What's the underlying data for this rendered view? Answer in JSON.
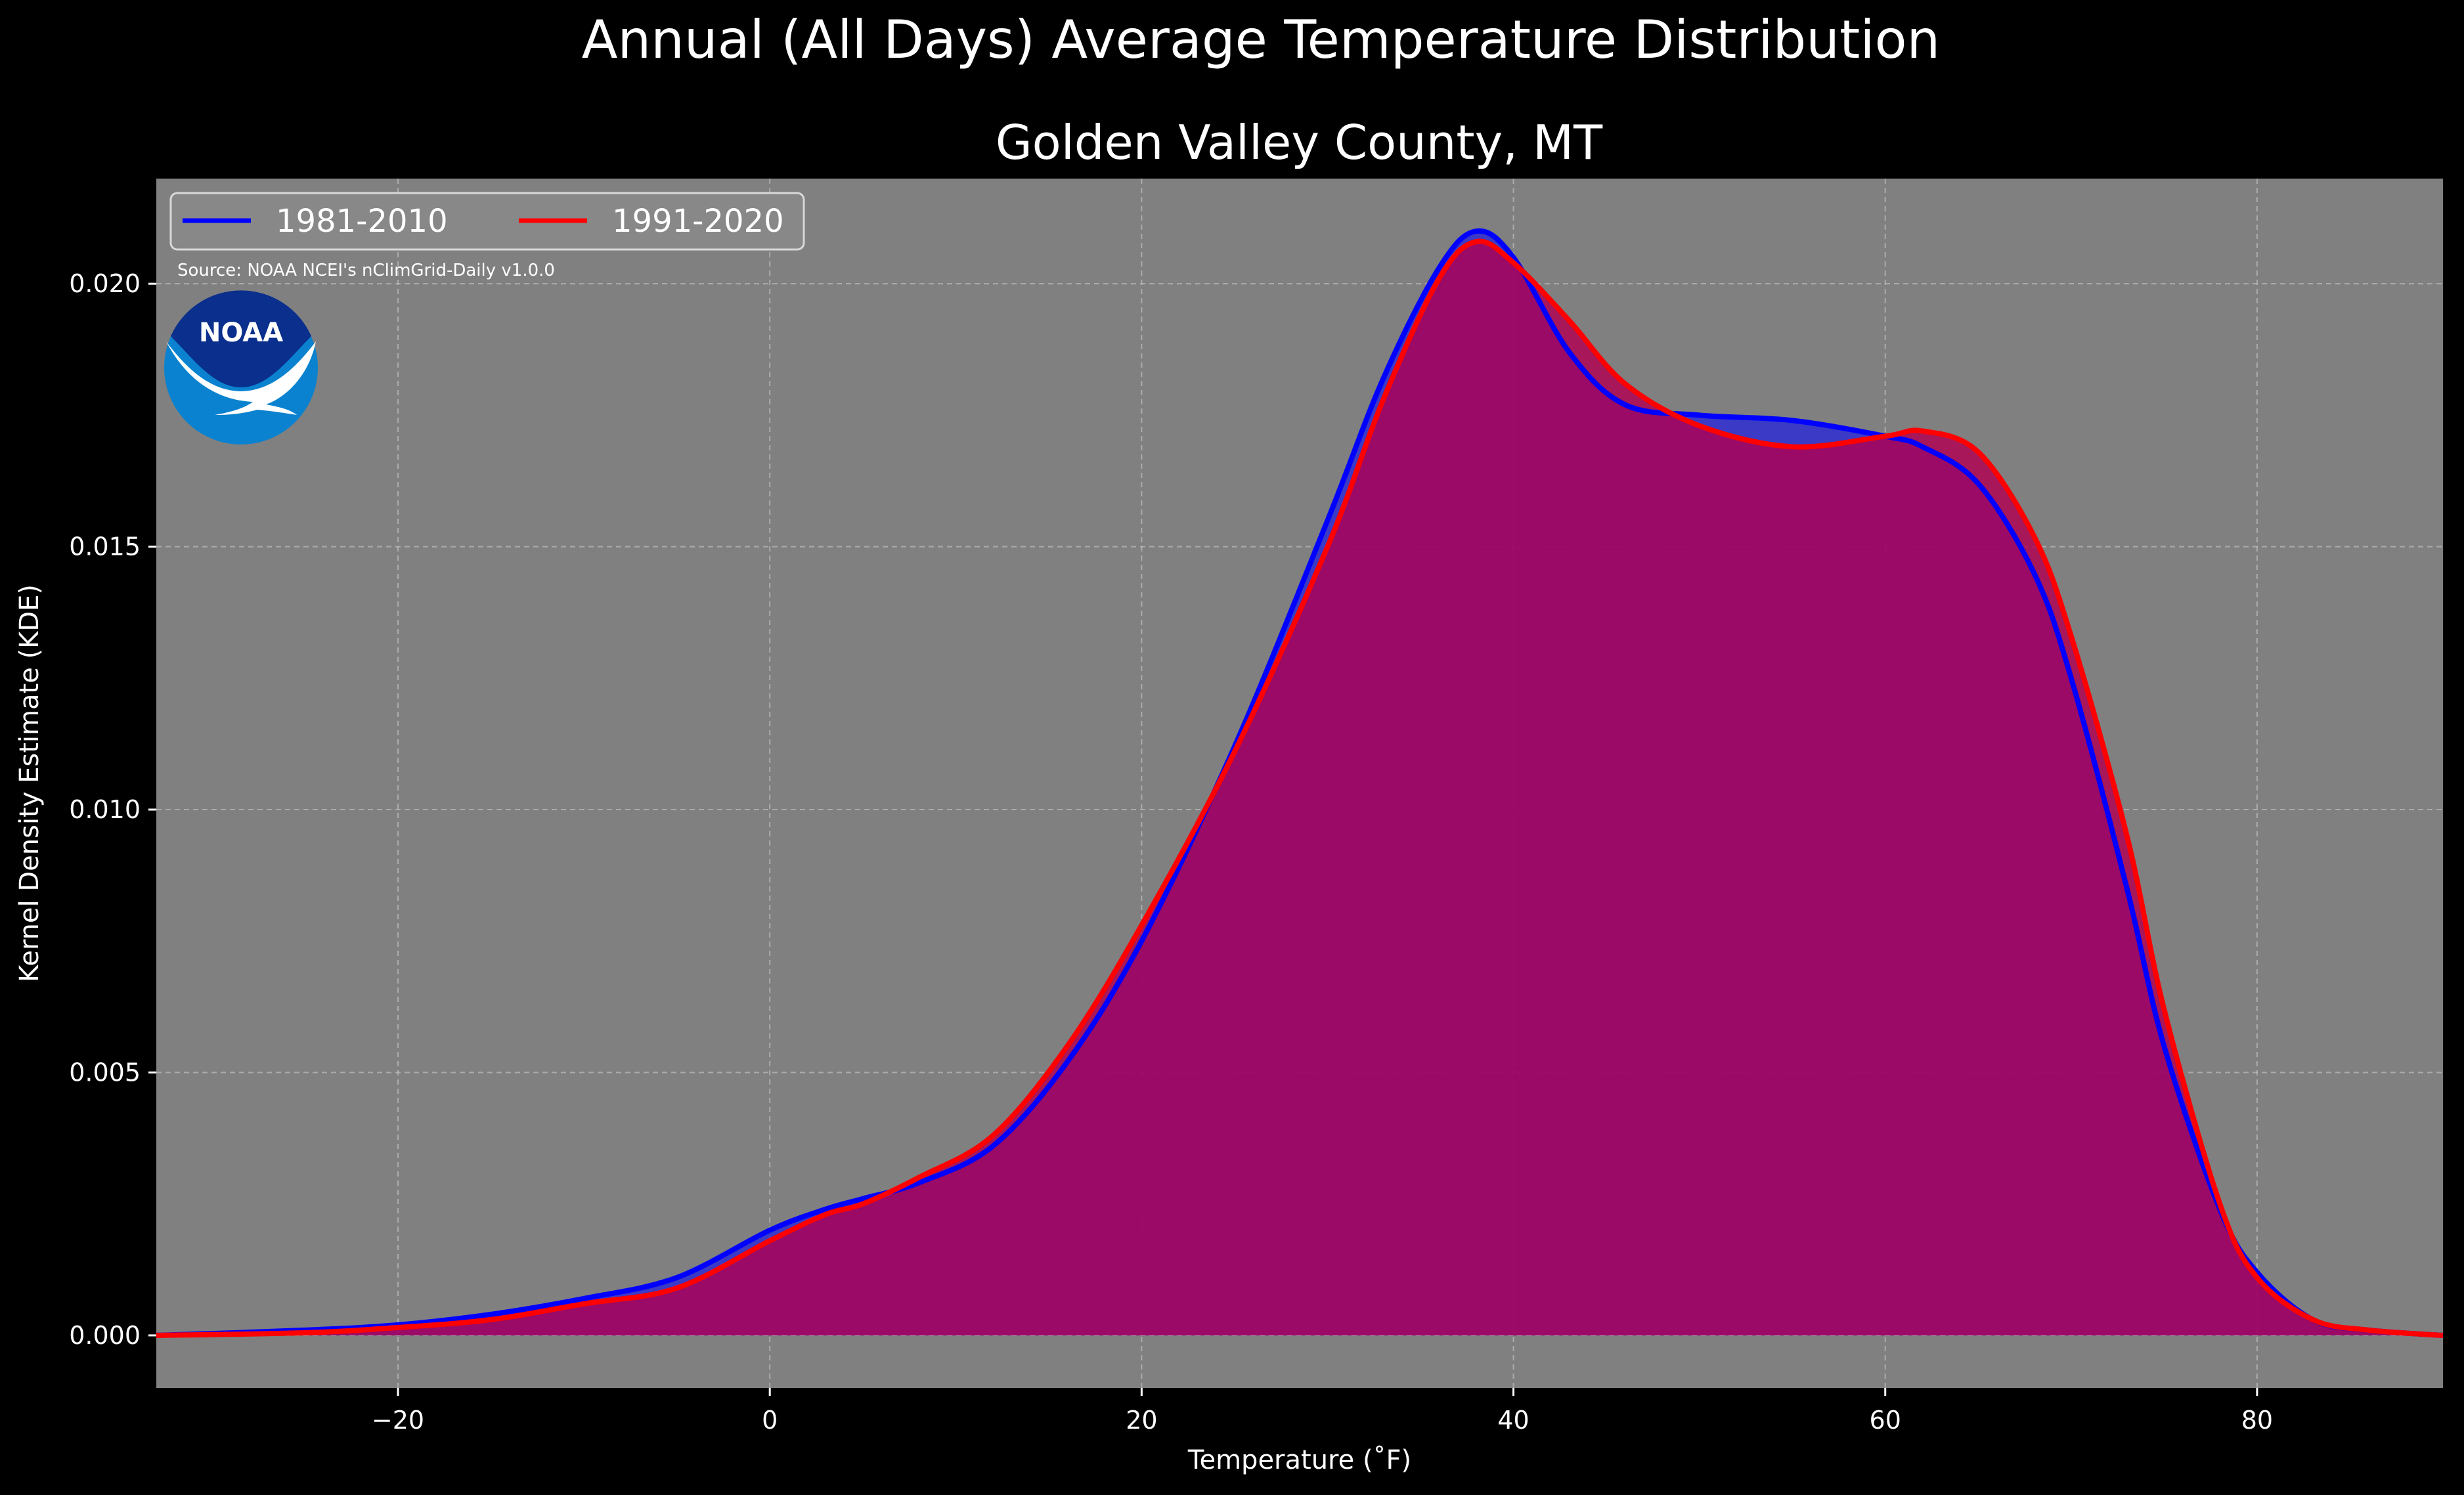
{
  "colors": {
    "figure_background": "#000000",
    "plot_background": "#808080",
    "series_1981": "#0000ff",
    "series_1991": "#ff0000",
    "fill_1981": "#0000ff",
    "fill_1991": "#b00050",
    "text": "#ffffff",
    "logo_dark": "#0a2f8c",
    "logo_light": "#0a82cf"
  },
  "logo": {
    "text": "NOAA",
    "icon": "noaa-logo-icon"
  },
  "source": "Source: NOAA NCEI's nClimGrid-Daily v1.0.0",
  "chart_data": {
    "type": "area",
    "title": "Golden Valley County, MT",
    "suptitle": "Annual (All Days) Average Temperature Distribution",
    "xlabel": "Temperature ($^\\circ$F)",
    "xlabel_display": "Temperature (˚F)",
    "ylabel": "Kernel Density Estimate (KDE)",
    "xlim": [
      -33,
      90
    ],
    "ylim": [
      -0.001,
      0.022
    ],
    "xticks": [
      -20,
      0,
      20,
      40,
      60,
      80
    ],
    "xtick_labels": [
      "−20",
      "0",
      "20",
      "40",
      "60",
      "80"
    ],
    "yticks": [
      0.0,
      0.005,
      0.01,
      0.015,
      0.02
    ],
    "ytick_labels": [
      "0.000",
      "0.005",
      "0.010",
      "0.015",
      "0.020"
    ],
    "grid": true,
    "legend_placement": "top-left",
    "series": [
      {
        "name": "1981-2010",
        "x": [
          -33,
          -25,
          -20,
          -15,
          -10,
          -5,
          0,
          3,
          5,
          8,
          12,
          16,
          20,
          25,
          30,
          33,
          36,
          38,
          40,
          43,
          46,
          50,
          55,
          60,
          62,
          65,
          68,
          70,
          73,
          75,
          78,
          80,
          83,
          86,
          90
        ],
        "y": [
          0.0,
          0.0001,
          0.0002,
          0.0004,
          0.0007,
          0.0011,
          0.002,
          0.0024,
          0.0026,
          0.0029,
          0.0036,
          0.0052,
          0.0075,
          0.0112,
          0.0155,
          0.0182,
          0.0203,
          0.021,
          0.0205,
          0.0187,
          0.0177,
          0.0175,
          0.0174,
          0.0171,
          0.0169,
          0.0162,
          0.0145,
          0.0125,
          0.0085,
          0.0055,
          0.0024,
          0.0012,
          0.0003,
          0.0001,
          0.0
        ]
      },
      {
        "name": "1991-2020",
        "x": [
          -33,
          -25,
          -20,
          -15,
          -10,
          -5,
          0,
          3,
          5,
          8,
          12,
          16,
          20,
          25,
          30,
          33,
          36,
          38,
          40,
          43,
          46,
          50,
          55,
          60,
          62,
          65,
          68,
          70,
          73,
          75,
          78,
          80,
          83,
          86,
          90
        ],
        "y": [
          0.0,
          5e-05,
          0.00015,
          0.0003,
          0.0006,
          0.0009,
          0.0018,
          0.0023,
          0.0025,
          0.003,
          0.0038,
          0.0055,
          0.0078,
          0.0111,
          0.015,
          0.0178,
          0.0201,
          0.0208,
          0.0204,
          0.0193,
          0.0181,
          0.0173,
          0.0169,
          0.0171,
          0.0172,
          0.0168,
          0.0152,
          0.0133,
          0.0095,
          0.0062,
          0.0025,
          0.0011,
          0.0003,
          0.0001,
          0.0
        ]
      }
    ]
  }
}
